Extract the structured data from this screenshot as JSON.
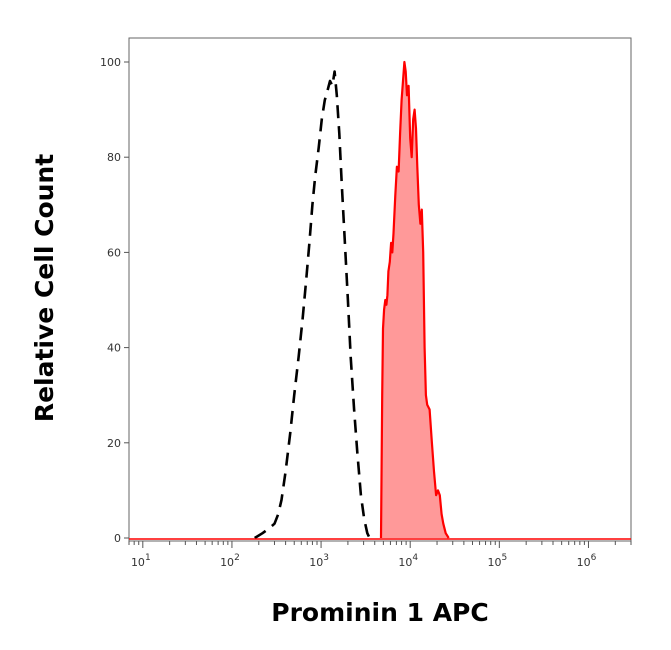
{
  "chart_data": {
    "type": "area",
    "title": "",
    "xlabel": "Prominin 1  APC",
    "ylabel": "Relative Cell Count",
    "x_scale": "log",
    "xlim": [
      7,
      3000000
    ],
    "ylim": [
      0,
      100
    ],
    "x_ticks": [
      {
        "base": "10",
        "exp": "1",
        "value": 10
      },
      {
        "base": "10",
        "exp": "2",
        "value": 100
      },
      {
        "base": "10",
        "exp": "3",
        "value": 1000
      },
      {
        "base": "10",
        "exp": "4",
        "value": 10000
      },
      {
        "base": "10",
        "exp": "5",
        "value": 100000
      },
      {
        "base": "10",
        "exp": "6",
        "value": 1000000
      }
    ],
    "y_ticks": [
      {
        "label": "0",
        "value": 0
      },
      {
        "label": "20",
        "value": 20
      },
      {
        "label": "40",
        "value": 40
      },
      {
        "label": "60",
        "value": 60
      },
      {
        "label": "80",
        "value": 80
      },
      {
        "label": "100",
        "value": 100
      }
    ],
    "grid": false,
    "legend": "none",
    "series": [
      {
        "style": "dashed",
        "color": "#000000",
        "points": [
          [
            180,
            0
          ],
          [
            220,
            1
          ],
          [
            260,
            2
          ],
          [
            300,
            3
          ],
          [
            330,
            5
          ],
          [
            360,
            8
          ],
          [
            400,
            14
          ],
          [
            450,
            22
          ],
          [
            500,
            30
          ],
          [
            560,
            38
          ],
          [
            620,
            46
          ],
          [
            680,
            54
          ],
          [
            740,
            62
          ],
          [
            800,
            70
          ],
          [
            860,
            76
          ],
          [
            940,
            82
          ],
          [
            1020,
            88
          ],
          [
            1100,
            92
          ],
          [
            1180,
            94
          ],
          [
            1260,
            96
          ],
          [
            1340,
            95
          ],
          [
            1420,
            98
          ],
          [
            1500,
            93
          ],
          [
            1600,
            85
          ],
          [
            1700,
            75
          ],
          [
            1850,
            62
          ],
          [
            2000,
            50
          ],
          [
            2150,
            38
          ],
          [
            2350,
            27
          ],
          [
            2550,
            18
          ],
          [
            2800,
            9
          ],
          [
            3050,
            4
          ],
          [
            3300,
            1
          ],
          [
            3500,
            0
          ]
        ]
      },
      {
        "style": "filled",
        "color": "#ff0000",
        "fill": "#ff9999",
        "points": [
          [
            4700,
            0
          ],
          [
            4780,
            15
          ],
          [
            4850,
            30
          ],
          [
            4950,
            44
          ],
          [
            5100,
            48
          ],
          [
            5250,
            50
          ],
          [
            5400,
            49
          ],
          [
            5550,
            51
          ],
          [
            5700,
            56
          ],
          [
            5900,
            58
          ],
          [
            6100,
            62
          ],
          [
            6300,
            60
          ],
          [
            6500,
            64
          ],
          [
            6800,
            72
          ],
          [
            7100,
            78
          ],
          [
            7400,
            77
          ],
          [
            7700,
            85
          ],
          [
            8000,
            92
          ],
          [
            8300,
            96
          ],
          [
            8600,
            100
          ],
          [
            8900,
            98
          ],
          [
            9200,
            93
          ],
          [
            9600,
            95
          ],
          [
            10000,
            84
          ],
          [
            10400,
            80
          ],
          [
            10800,
            88
          ],
          [
            11200,
            90
          ],
          [
            11600,
            86
          ],
          [
            12000,
            78
          ],
          [
            12500,
            70
          ],
          [
            13000,
            66
          ],
          [
            13500,
            69
          ],
          [
            14000,
            60
          ],
          [
            14500,
            40
          ],
          [
            15000,
            30
          ],
          [
            15500,
            28
          ],
          [
            16500,
            27
          ],
          [
            17500,
            20
          ],
          [
            18500,
            14
          ],
          [
            19500,
            9
          ],
          [
            20500,
            10
          ],
          [
            21500,
            9
          ],
          [
            22500,
            5
          ],
          [
            23500,
            3
          ],
          [
            25000,
            1
          ],
          [
            27000,
            0
          ]
        ]
      }
    ]
  }
}
